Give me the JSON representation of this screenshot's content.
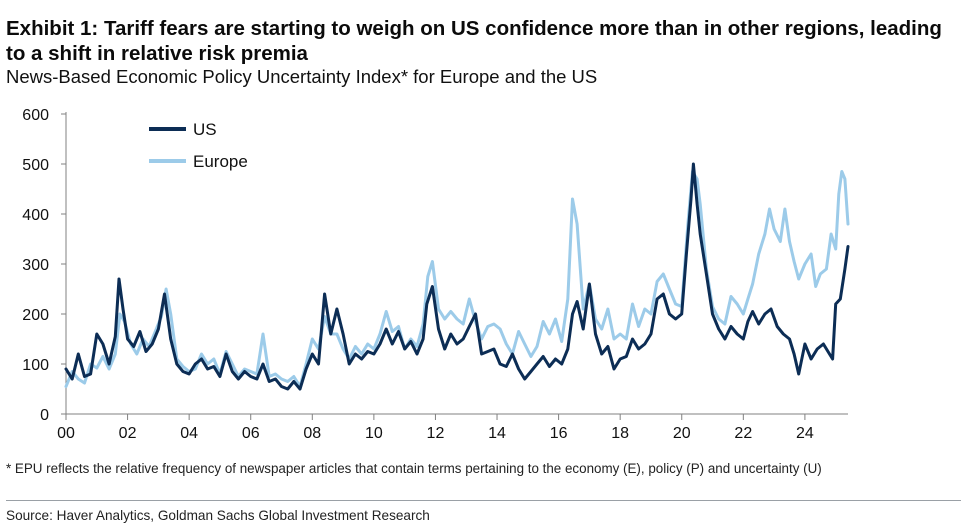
{
  "header": {
    "title": "Exhibit 1: Tariff fears are starting to weigh on US confidence more than in other regions, leading to a shift in relative risk premia",
    "subtitle": "News-Based Economic Policy Uncertainty Index* for Europe and the US"
  },
  "footer": {
    "footnote": "* EPU reflects the relative frequency of newspaper articles that contain terms pertaining to the economy (E), policy (P) and uncertainty (U)",
    "source": "Source: Haver Analytics, Goldman Sachs Global Investment Research"
  },
  "colors": {
    "us": "#0c2d55",
    "europe": "#9ccbe9",
    "axis": "#808080"
  },
  "chart_data": {
    "type": "line",
    "title": "",
    "xlabel": "",
    "ylabel": "",
    "x_unit": "year",
    "xlim": [
      2000,
      2025.4
    ],
    "ylim": [
      0,
      600
    ],
    "yticks": [
      0,
      100,
      200,
      300,
      400,
      500,
      600
    ],
    "xticks": [
      {
        "value": 2000,
        "label": "00"
      },
      {
        "value": 2002,
        "label": "02"
      },
      {
        "value": 2004,
        "label": "04"
      },
      {
        "value": 2006,
        "label": "06"
      },
      {
        "value": 2008,
        "label": "08"
      },
      {
        "value": 2010,
        "label": "10"
      },
      {
        "value": 2012,
        "label": "12"
      },
      {
        "value": 2014,
        "label": "14"
      },
      {
        "value": 2016,
        "label": "16"
      },
      {
        "value": 2018,
        "label": "18"
      },
      {
        "value": 2020,
        "label": "20"
      },
      {
        "value": 2022,
        "label": "22"
      },
      {
        "value": 2024,
        "label": "24"
      }
    ],
    "grid": false,
    "legend": "top-left",
    "series": [
      {
        "name": "Europe",
        "color": "#9ccbe9",
        "points": [
          [
            2000.0,
            55
          ],
          [
            2000.2,
            85
          ],
          [
            2000.4,
            70
          ],
          [
            2000.6,
            62
          ],
          [
            2000.8,
            100
          ],
          [
            2001.0,
            92
          ],
          [
            2001.2,
            115
          ],
          [
            2001.4,
            90
          ],
          [
            2001.6,
            120
          ],
          [
            2001.75,
            200
          ],
          [
            2001.9,
            185
          ],
          [
            2002.1,
            140
          ],
          [
            2002.3,
            120
          ],
          [
            2002.5,
            150
          ],
          [
            2002.7,
            135
          ],
          [
            2002.9,
            165
          ],
          [
            2003.1,
            195
          ],
          [
            2003.25,
            250
          ],
          [
            2003.4,
            200
          ],
          [
            2003.6,
            110
          ],
          [
            2003.8,
            95
          ],
          [
            2004.0,
            85
          ],
          [
            2004.2,
            90
          ],
          [
            2004.4,
            120
          ],
          [
            2004.6,
            100
          ],
          [
            2004.8,
            110
          ],
          [
            2005.0,
            80
          ],
          [
            2005.2,
            125
          ],
          [
            2005.4,
            100
          ],
          [
            2005.6,
            75
          ],
          [
            2005.8,
            90
          ],
          [
            2006.0,
            85
          ],
          [
            2006.2,
            80
          ],
          [
            2006.4,
            160
          ],
          [
            2006.6,
            75
          ],
          [
            2006.8,
            80
          ],
          [
            2007.0,
            70
          ],
          [
            2007.2,
            65
          ],
          [
            2007.4,
            75
          ],
          [
            2007.6,
            55
          ],
          [
            2007.8,
            100
          ],
          [
            2008.0,
            150
          ],
          [
            2008.2,
            130
          ],
          [
            2008.4,
            195
          ],
          [
            2008.6,
            160
          ],
          [
            2008.8,
            160
          ],
          [
            2009.0,
            130
          ],
          [
            2009.2,
            110
          ],
          [
            2009.4,
            135
          ],
          [
            2009.6,
            120
          ],
          [
            2009.8,
            140
          ],
          [
            2010.0,
            130
          ],
          [
            2010.2,
            160
          ],
          [
            2010.4,
            205
          ],
          [
            2010.6,
            165
          ],
          [
            2010.8,
            175
          ],
          [
            2011.0,
            130
          ],
          [
            2011.2,
            150
          ],
          [
            2011.4,
            135
          ],
          [
            2011.6,
            180
          ],
          [
            2011.75,
            275
          ],
          [
            2011.9,
            305
          ],
          [
            2012.1,
            210
          ],
          [
            2012.3,
            190
          ],
          [
            2012.5,
            205
          ],
          [
            2012.7,
            190
          ],
          [
            2012.9,
            180
          ],
          [
            2013.1,
            230
          ],
          [
            2013.3,
            185
          ],
          [
            2013.5,
            150
          ],
          [
            2013.7,
            175
          ],
          [
            2013.9,
            180
          ],
          [
            2014.1,
            170
          ],
          [
            2014.3,
            140
          ],
          [
            2014.5,
            120
          ],
          [
            2014.7,
            165
          ],
          [
            2014.9,
            140
          ],
          [
            2015.1,
            115
          ],
          [
            2015.3,
            135
          ],
          [
            2015.5,
            185
          ],
          [
            2015.7,
            160
          ],
          [
            2015.9,
            190
          ],
          [
            2016.1,
            145
          ],
          [
            2016.3,
            230
          ],
          [
            2016.45,
            430
          ],
          [
            2016.6,
            380
          ],
          [
            2016.8,
            210
          ],
          [
            2017.0,
            260
          ],
          [
            2017.2,
            190
          ],
          [
            2017.4,
            170
          ],
          [
            2017.6,
            210
          ],
          [
            2017.8,
            150
          ],
          [
            2018.0,
            160
          ],
          [
            2018.2,
            150
          ],
          [
            2018.4,
            220
          ],
          [
            2018.6,
            175
          ],
          [
            2018.8,
            210
          ],
          [
            2019.0,
            200
          ],
          [
            2019.2,
            265
          ],
          [
            2019.4,
            280
          ],
          [
            2019.6,
            250
          ],
          [
            2019.8,
            220
          ],
          [
            2020.0,
            215
          ],
          [
            2020.2,
            380
          ],
          [
            2020.35,
            485
          ],
          [
            2020.5,
            470
          ],
          [
            2020.6,
            420
          ],
          [
            2020.8,
            290
          ],
          [
            2021.0,
            215
          ],
          [
            2021.2,
            190
          ],
          [
            2021.4,
            180
          ],
          [
            2021.6,
            235
          ],
          [
            2021.8,
            220
          ],
          [
            2022.0,
            200
          ],
          [
            2022.15,
            230
          ],
          [
            2022.3,
            260
          ],
          [
            2022.5,
            320
          ],
          [
            2022.7,
            360
          ],
          [
            2022.85,
            410
          ],
          [
            2023.0,
            370
          ],
          [
            2023.2,
            345
          ],
          [
            2023.35,
            410
          ],
          [
            2023.5,
            345
          ],
          [
            2023.65,
            305
          ],
          [
            2023.8,
            270
          ],
          [
            2024.0,
            300
          ],
          [
            2024.2,
            320
          ],
          [
            2024.35,
            255
          ],
          [
            2024.5,
            280
          ],
          [
            2024.7,
            290
          ],
          [
            2024.85,
            360
          ],
          [
            2025.0,
            330
          ],
          [
            2025.1,
            440
          ],
          [
            2025.2,
            485
          ],
          [
            2025.3,
            470
          ],
          [
            2025.4,
            380
          ]
        ]
      },
      {
        "name": "US",
        "color": "#0c2d55",
        "points": [
          [
            2000.0,
            90
          ],
          [
            2000.2,
            70
          ],
          [
            2000.4,
            120
          ],
          [
            2000.6,
            75
          ],
          [
            2000.8,
            80
          ],
          [
            2001.0,
            160
          ],
          [
            2001.2,
            140
          ],
          [
            2001.4,
            100
          ],
          [
            2001.6,
            155
          ],
          [
            2001.72,
            270
          ],
          [
            2001.85,
            210
          ],
          [
            2002.0,
            150
          ],
          [
            2002.2,
            135
          ],
          [
            2002.4,
            165
          ],
          [
            2002.6,
            125
          ],
          [
            2002.8,
            140
          ],
          [
            2003.0,
            170
          ],
          [
            2003.2,
            240
          ],
          [
            2003.4,
            150
          ],
          [
            2003.6,
            100
          ],
          [
            2003.8,
            85
          ],
          [
            2004.0,
            80
          ],
          [
            2004.2,
            100
          ],
          [
            2004.4,
            110
          ],
          [
            2004.6,
            90
          ],
          [
            2004.8,
            95
          ],
          [
            2005.0,
            75
          ],
          [
            2005.2,
            120
          ],
          [
            2005.4,
            85
          ],
          [
            2005.6,
            70
          ],
          [
            2005.8,
            85
          ],
          [
            2006.0,
            75
          ],
          [
            2006.2,
            70
          ],
          [
            2006.4,
            100
          ],
          [
            2006.6,
            65
          ],
          [
            2006.8,
            70
          ],
          [
            2007.0,
            55
          ],
          [
            2007.2,
            50
          ],
          [
            2007.4,
            65
          ],
          [
            2007.6,
            50
          ],
          [
            2007.8,
            90
          ],
          [
            2008.0,
            120
          ],
          [
            2008.2,
            100
          ],
          [
            2008.4,
            240
          ],
          [
            2008.6,
            160
          ],
          [
            2008.8,
            210
          ],
          [
            2009.0,
            160
          ],
          [
            2009.2,
            100
          ],
          [
            2009.4,
            120
          ],
          [
            2009.6,
            110
          ],
          [
            2009.8,
            125
          ],
          [
            2010.0,
            120
          ],
          [
            2010.2,
            140
          ],
          [
            2010.4,
            170
          ],
          [
            2010.6,
            140
          ],
          [
            2010.8,
            165
          ],
          [
            2011.0,
            130
          ],
          [
            2011.2,
            145
          ],
          [
            2011.4,
            120
          ],
          [
            2011.6,
            150
          ],
          [
            2011.72,
            220
          ],
          [
            2011.9,
            255
          ],
          [
            2012.1,
            170
          ],
          [
            2012.3,
            130
          ],
          [
            2012.5,
            160
          ],
          [
            2012.7,
            140
          ],
          [
            2012.9,
            150
          ],
          [
            2013.1,
            175
          ],
          [
            2013.3,
            200
          ],
          [
            2013.5,
            120
          ],
          [
            2013.7,
            125
          ],
          [
            2013.9,
            130
          ],
          [
            2014.1,
            100
          ],
          [
            2014.3,
            95
          ],
          [
            2014.5,
            120
          ],
          [
            2014.7,
            90
          ],
          [
            2014.9,
            70
          ],
          [
            2015.1,
            85
          ],
          [
            2015.3,
            100
          ],
          [
            2015.5,
            115
          ],
          [
            2015.7,
            95
          ],
          [
            2015.9,
            110
          ],
          [
            2016.1,
            100
          ],
          [
            2016.3,
            130
          ],
          [
            2016.45,
            200
          ],
          [
            2016.6,
            225
          ],
          [
            2016.8,
            170
          ],
          [
            2017.0,
            260
          ],
          [
            2017.2,
            160
          ],
          [
            2017.4,
            120
          ],
          [
            2017.6,
            135
          ],
          [
            2017.8,
            90
          ],
          [
            2018.0,
            110
          ],
          [
            2018.2,
            115
          ],
          [
            2018.4,
            150
          ],
          [
            2018.6,
            130
          ],
          [
            2018.8,
            140
          ],
          [
            2019.0,
            160
          ],
          [
            2019.2,
            230
          ],
          [
            2019.4,
            240
          ],
          [
            2019.6,
            200
          ],
          [
            2019.8,
            190
          ],
          [
            2020.0,
            200
          ],
          [
            2020.15,
            320
          ],
          [
            2020.3,
            430
          ],
          [
            2020.38,
            500
          ],
          [
            2020.5,
            420
          ],
          [
            2020.6,
            360
          ],
          [
            2020.8,
            280
          ],
          [
            2021.0,
            200
          ],
          [
            2021.2,
            170
          ],
          [
            2021.4,
            150
          ],
          [
            2021.6,
            175
          ],
          [
            2021.8,
            160
          ],
          [
            2022.0,
            150
          ],
          [
            2022.15,
            185
          ],
          [
            2022.3,
            205
          ],
          [
            2022.5,
            180
          ],
          [
            2022.7,
            200
          ],
          [
            2022.9,
            210
          ],
          [
            2023.1,
            175
          ],
          [
            2023.3,
            160
          ],
          [
            2023.5,
            150
          ],
          [
            2023.65,
            120
          ],
          [
            2023.8,
            80
          ],
          [
            2024.0,
            140
          ],
          [
            2024.2,
            110
          ],
          [
            2024.4,
            130
          ],
          [
            2024.6,
            140
          ],
          [
            2024.8,
            120
          ],
          [
            2024.9,
            110
          ],
          [
            2025.0,
            220
          ],
          [
            2025.15,
            230
          ],
          [
            2025.3,
            290
          ],
          [
            2025.4,
            335
          ]
        ]
      }
    ]
  }
}
